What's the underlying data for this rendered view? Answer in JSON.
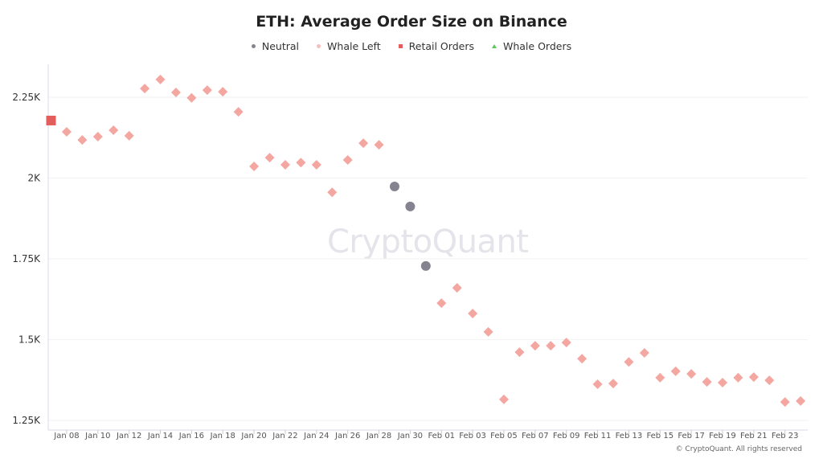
{
  "chart_data": {
    "type": "scatter",
    "title": "ETH: Average Order Size on Binance",
    "legend": [
      {
        "name": "Neutral",
        "color": "#85838f",
        "marker": "circle"
      },
      {
        "name": "Whale Left",
        "color": "#f4a6a0",
        "marker": "diamond"
      },
      {
        "name": "Retail Orders",
        "color": "#e35d5d",
        "marker": "square"
      },
      {
        "name": "Whale Orders",
        "color": "#5cc95c",
        "marker": "triangle"
      }
    ],
    "legend_position": "top",
    "ylim": [
      1250,
      2350
    ],
    "yticks": [
      1250,
      1500,
      1750,
      2000,
      2250
    ],
    "ytick_labels": [
      "1.25K",
      "1.5K",
      "1.75K",
      "2K",
      "2.25K"
    ],
    "xticks": [
      "Jan 08",
      "Jan 10",
      "Jan 12",
      "Jan 14",
      "Jan 16",
      "Jan 18",
      "Jan 20",
      "Jan 22",
      "Jan 24",
      "Jan 26",
      "Jan 28",
      "Jan 30",
      "Feb 01",
      "Feb 03",
      "Feb 05",
      "Feb 07",
      "Feb 09",
      "Feb 11",
      "Feb 13",
      "Feb 15",
      "Feb 17",
      "Feb 19",
      "Feb 21",
      "Feb 23"
    ],
    "grid": true,
    "points": [
      [
        "2025-01-07",
        2178,
        "Retail Orders"
      ],
      [
        "2025-01-08",
        2143,
        "Whale Left"
      ],
      [
        "2025-01-09",
        2118,
        "Whale Left"
      ],
      [
        "2025-01-10",
        2128,
        "Whale Left"
      ],
      [
        "2025-01-11",
        2148,
        "Whale Left"
      ],
      [
        "2025-01-12",
        2131,
        "Whale Left"
      ],
      [
        "2025-01-13",
        2277,
        "Whale Left"
      ],
      [
        "2025-01-14",
        2305,
        "Whale Left"
      ],
      [
        "2025-01-15",
        2265,
        "Whale Left"
      ],
      [
        "2025-01-16",
        2248,
        "Whale Left"
      ],
      [
        "2025-01-17",
        2272,
        "Whale Left"
      ],
      [
        "2025-01-18",
        2267,
        "Whale Left"
      ],
      [
        "2025-01-19",
        2205,
        "Whale Left"
      ],
      [
        "2025-01-20",
        2036,
        "Whale Left"
      ],
      [
        "2025-01-21",
        2063,
        "Whale Left"
      ],
      [
        "2025-01-22",
        2041,
        "Whale Left"
      ],
      [
        "2025-01-23",
        2048,
        "Whale Left"
      ],
      [
        "2025-01-24",
        2041,
        "Whale Left"
      ],
      [
        "2025-01-25",
        1956,
        "Whale Left"
      ],
      [
        "2025-01-26",
        2056,
        "Whale Left"
      ],
      [
        "2025-01-27",
        2108,
        "Whale Left"
      ],
      [
        "2025-01-28",
        2103,
        "Whale Left"
      ],
      [
        "2025-01-29",
        1974,
        "Neutral"
      ],
      [
        "2025-01-30",
        1912,
        "Neutral"
      ],
      [
        "2025-01-31",
        1728,
        "Neutral"
      ],
      [
        "2025-02-01",
        1613,
        "Whale Left"
      ],
      [
        "2025-02-02",
        1660,
        "Whale Left"
      ],
      [
        "2025-02-03",
        1581,
        "Whale Left"
      ],
      [
        "2025-02-04",
        1524,
        "Whale Left"
      ],
      [
        "2025-02-05",
        1315,
        "Whale Left"
      ],
      [
        "2025-02-06",
        1461,
        "Whale Left"
      ],
      [
        "2025-02-07",
        1481,
        "Whale Left"
      ],
      [
        "2025-02-08",
        1481,
        "Whale Left"
      ],
      [
        "2025-02-09",
        1491,
        "Whale Left"
      ],
      [
        "2025-02-10",
        1441,
        "Whale Left"
      ],
      [
        "2025-02-11",
        1362,
        "Whale Left"
      ],
      [
        "2025-02-12",
        1364,
        "Whale Left"
      ],
      [
        "2025-02-13",
        1431,
        "Whale Left"
      ],
      [
        "2025-02-14",
        1459,
        "Whale Left"
      ],
      [
        "2025-02-15",
        1382,
        "Whale Left"
      ],
      [
        "2025-02-16",
        1402,
        "Whale Left"
      ],
      [
        "2025-02-17",
        1394,
        "Whale Left"
      ],
      [
        "2025-02-18",
        1369,
        "Whale Left"
      ],
      [
        "2025-02-19",
        1367,
        "Whale Left"
      ],
      [
        "2025-02-20",
        1382,
        "Whale Left"
      ],
      [
        "2025-02-21",
        1384,
        "Whale Left"
      ],
      [
        "2025-02-22",
        1374,
        "Whale Left"
      ],
      [
        "2025-02-23",
        1307,
        "Whale Left"
      ],
      [
        "2025-02-24",
        1310,
        "Whale Left"
      ]
    ]
  },
  "watermark": "CryptoQuant",
  "credit": "© CryptoQuant. All rights reserved"
}
